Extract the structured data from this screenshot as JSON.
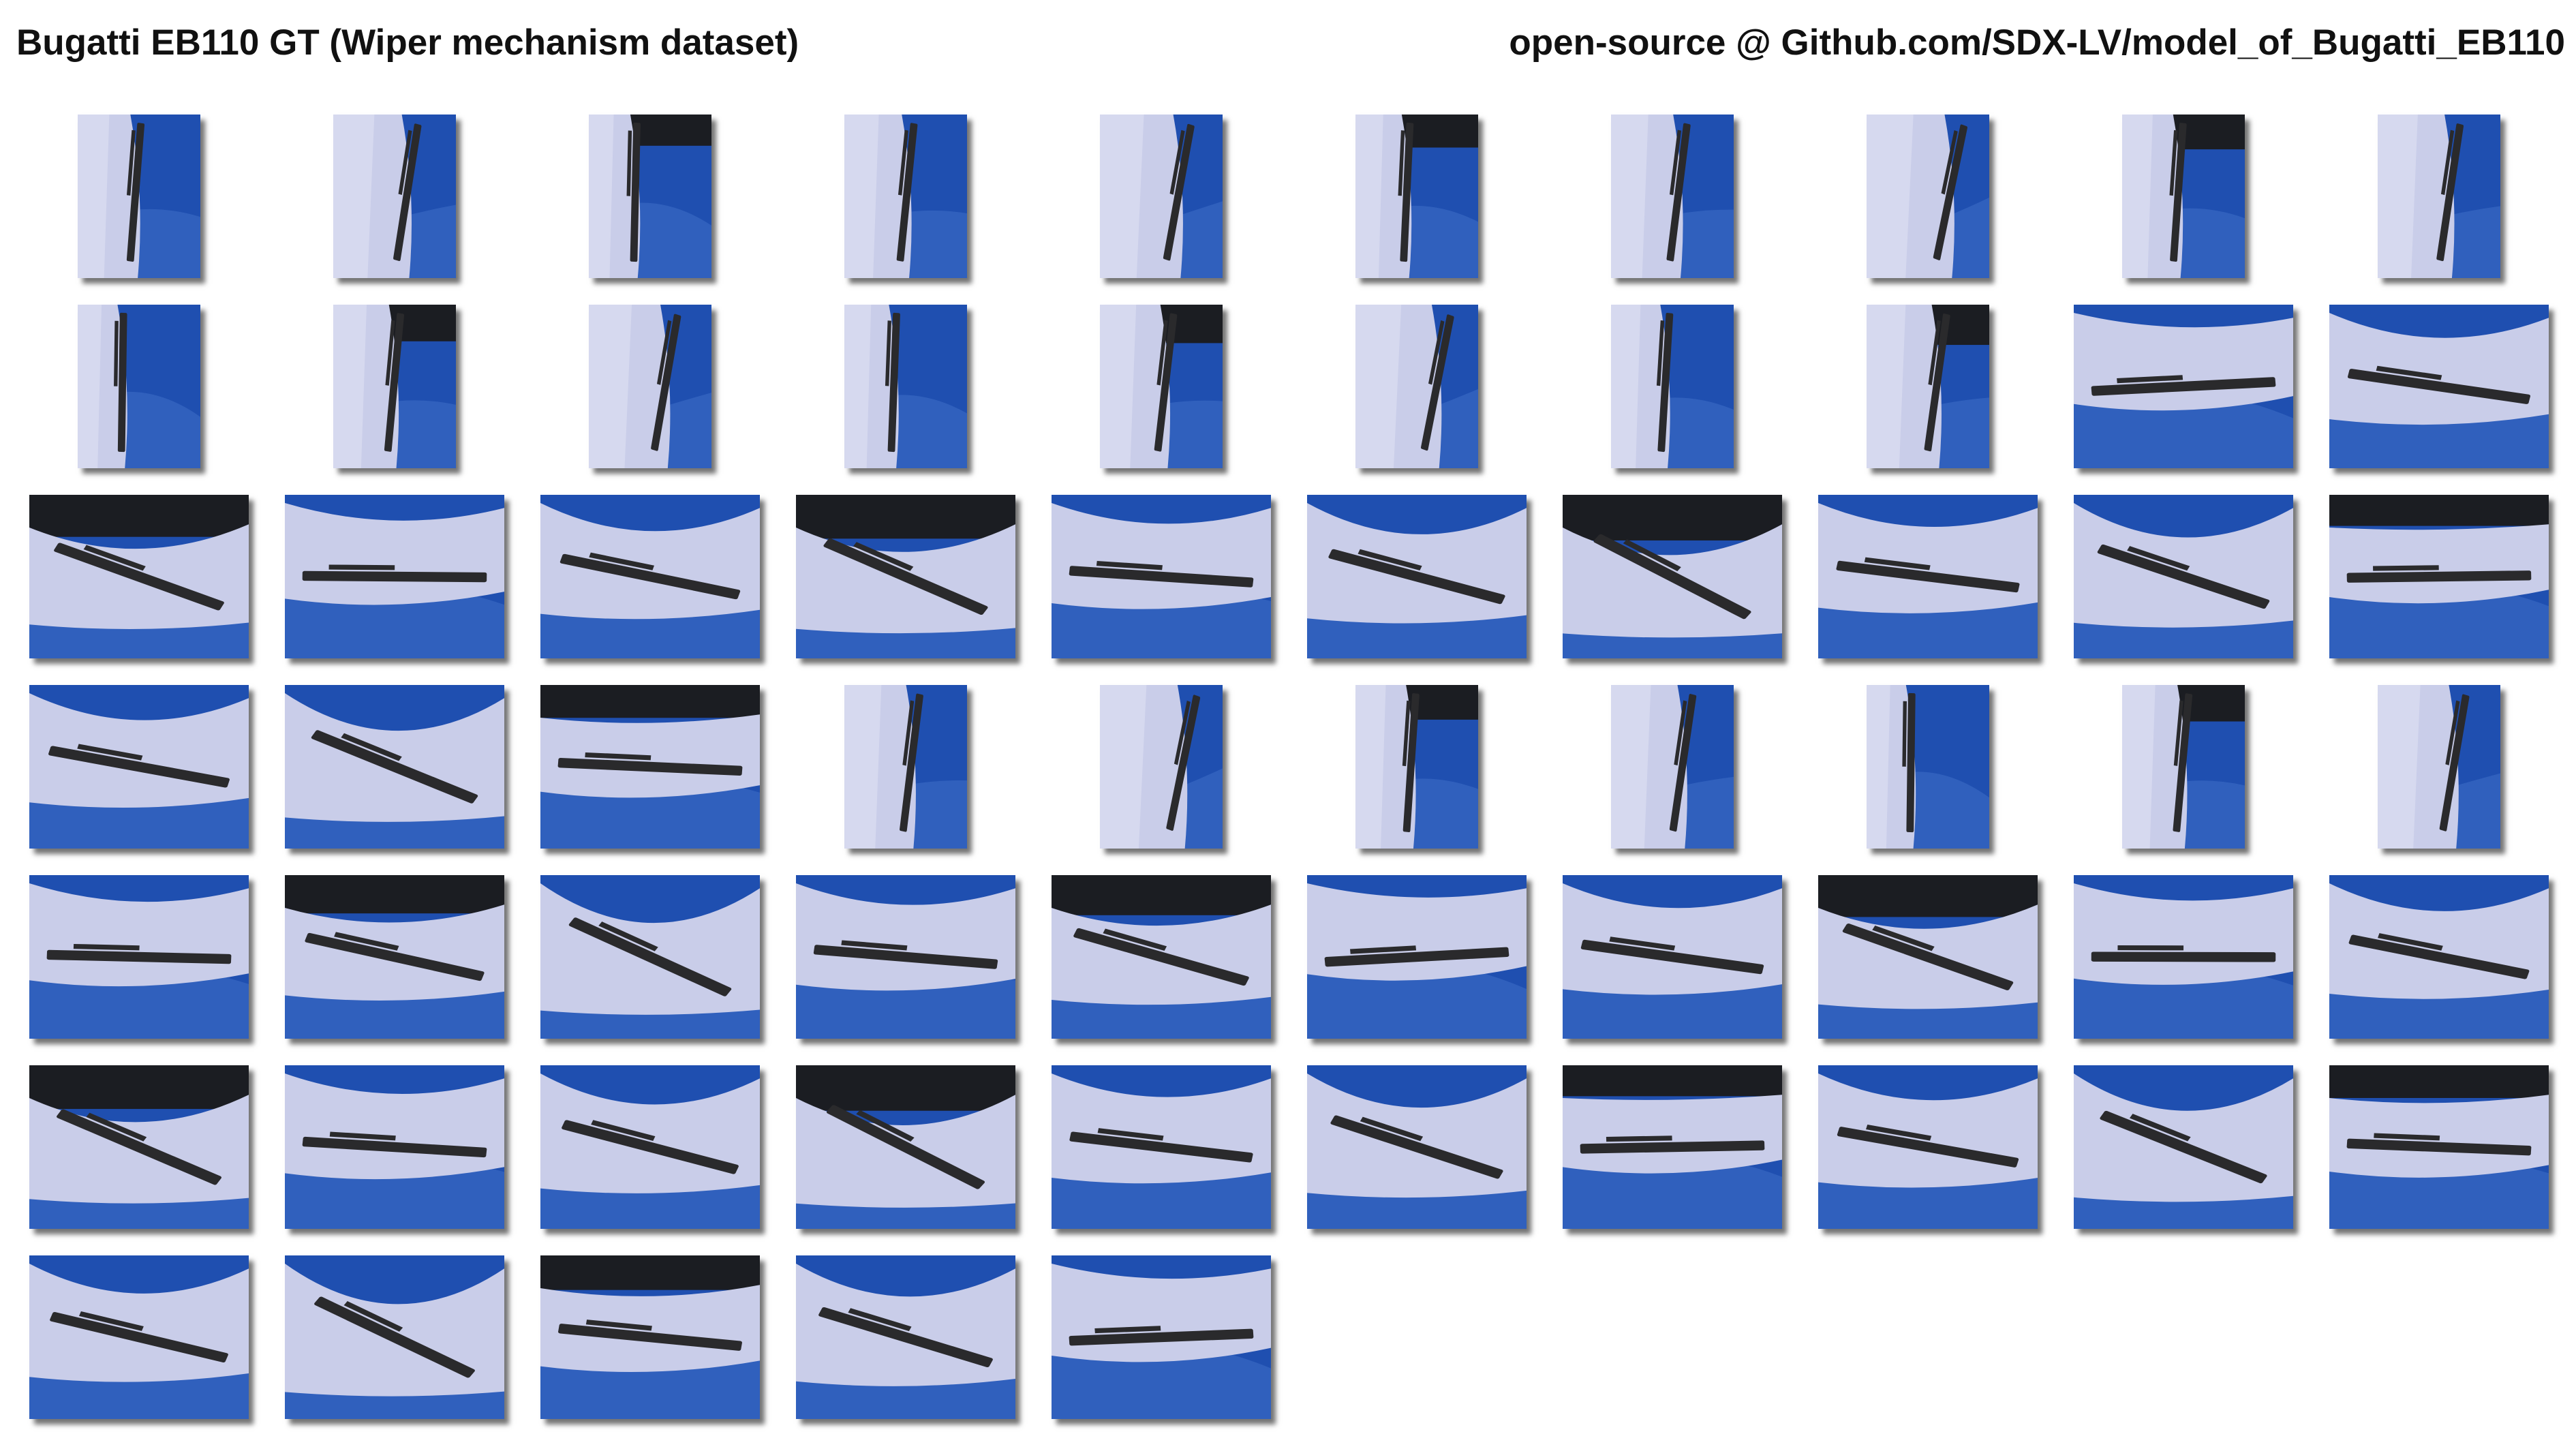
{
  "header": {
    "title": "Bugatti EB110 GT (Wiper mechanism dataset)",
    "source": "open-source @ Github.com/SDX-LV/model_of_Bugatti_EB110"
  },
  "colors": {
    "car_paint": "#1f4fb0",
    "car_paint_light": "#4f82d8",
    "paper": "#c9cde9",
    "paper_light": "#dfe1f3",
    "wiper": "#2a2a2c",
    "glass_dark": "#1b1d22"
  },
  "gallery": {
    "rows": [
      [
        "portrait",
        "portrait",
        "portrait",
        "portrait",
        "portrait",
        "portrait",
        "portrait",
        "portrait",
        "portrait",
        "portrait"
      ],
      [
        "portrait",
        "portrait",
        "portrait",
        "portrait",
        "portrait",
        "portrait",
        "portrait",
        "portrait",
        "landscape",
        "landscape"
      ],
      [
        "landscape",
        "landscape",
        "landscape",
        "landscape",
        "landscape",
        "landscape",
        "landscape",
        "landscape",
        "landscape",
        "landscape"
      ],
      [
        "landscape",
        "landscape",
        "landscape",
        "portrait",
        "portrait",
        "portrait",
        "portrait",
        "portrait",
        "portrait",
        "portrait"
      ],
      [
        "landscape",
        "landscape",
        "landscape",
        "landscape",
        "landscape",
        "landscape",
        "landscape",
        "landscape",
        "landscape",
        "landscape"
      ],
      [
        "landscape",
        "landscape",
        "landscape",
        "landscape",
        "landscape",
        "landscape",
        "landscape",
        "landscape",
        "landscape",
        "landscape"
      ],
      [
        "landscape",
        "landscape",
        "landscape",
        "landscape",
        "landscape"
      ]
    ]
  }
}
